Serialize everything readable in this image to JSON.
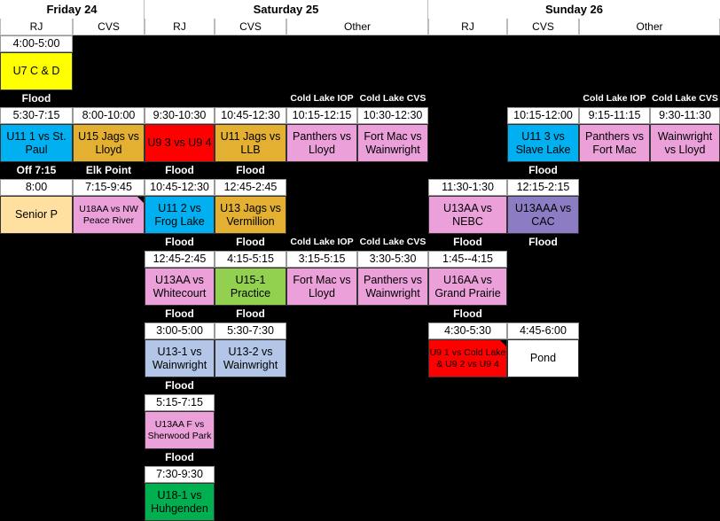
{
  "days": [
    {
      "name": "Friday 24"
    },
    {
      "name": "Saturday 25"
    },
    {
      "name": "Sunday 26"
    }
  ],
  "columns": [
    "RJ",
    "CVS",
    "RJ",
    "CVS",
    "Other",
    "RJ",
    "CVS",
    "Other"
  ],
  "cells": [
    {
      "kind": "time",
      "col": 0,
      "row": 0,
      "text": "4:00-5:00"
    },
    {
      "kind": "game",
      "col": 0,
      "row": 0,
      "text": "U7 C & D",
      "color": "#FFFF00"
    },
    {
      "kind": "label",
      "col": 0,
      "row": 1,
      "text": "Flood"
    },
    {
      "kind": "label",
      "col": 4,
      "row": 1,
      "text": "Cold Lake IOP",
      "small": true
    },
    {
      "kind": "label",
      "col": 5,
      "row": 1,
      "text": "Cold Lake CVS",
      "small": true
    },
    {
      "kind": "label",
      "col": 8,
      "row": 1,
      "text": "Cold Lake IOP",
      "small": true
    },
    {
      "kind": "label",
      "col": 9,
      "row": 1,
      "text": "Cold Lake CVS",
      "small": true
    },
    {
      "kind": "time",
      "col": 0,
      "row": 1,
      "text": "5:30-7:15"
    },
    {
      "kind": "game",
      "col": 0,
      "row": 1,
      "text": "U11 1 vs St. Paul",
      "color": "#00B0F0"
    },
    {
      "kind": "time",
      "col": 1,
      "row": 1,
      "text": "8:00-10:00"
    },
    {
      "kind": "game",
      "col": 1,
      "row": 1,
      "text": "U15 Jags vs Lloyd",
      "color": "#E3B032"
    },
    {
      "kind": "time",
      "col": 2,
      "row": 1,
      "text": "9:30-10:30"
    },
    {
      "kind": "game",
      "col": 2,
      "row": 1,
      "text": "U9 3 vs U9 4",
      "color": "#FF0000"
    },
    {
      "kind": "time",
      "col": 3,
      "row": 1,
      "text": "10:45-12:30"
    },
    {
      "kind": "game",
      "col": 3,
      "row": 1,
      "text": "U11 Jags vs LLB",
      "color": "#E3B032"
    },
    {
      "kind": "time",
      "col": 4,
      "row": 1,
      "text": "10:15-12:15"
    },
    {
      "kind": "game",
      "col": 4,
      "row": 1,
      "text": "Panthers vs Lloyd",
      "color": "#EBA0DA"
    },
    {
      "kind": "time",
      "col": 5,
      "row": 1,
      "text": "10:30-12:30"
    },
    {
      "kind": "game",
      "col": 5,
      "row": 1,
      "text": "Fort Mac vs Wainwright",
      "color": "#EBA0DA"
    },
    {
      "kind": "time",
      "col": 7,
      "row": 1,
      "text": "10:15-12:00"
    },
    {
      "kind": "game",
      "col": 7,
      "row": 1,
      "text": "U11 3 vs Slave Lake",
      "color": "#00B0F0"
    },
    {
      "kind": "time",
      "col": 8,
      "row": 1,
      "text": "9:15-11:15"
    },
    {
      "kind": "game",
      "col": 8,
      "row": 1,
      "text": "Panthers vs Fort Mac",
      "color": "#EBA0DA"
    },
    {
      "kind": "time",
      "col": 9,
      "row": 1,
      "text": "9:30-11:30"
    },
    {
      "kind": "game",
      "col": 9,
      "row": 1,
      "text": "Wainwright vs Lloyd",
      "color": "#EBA0DA"
    },
    {
      "kind": "label",
      "col": 0,
      "row": 2,
      "text": "Off 7:15"
    },
    {
      "kind": "label",
      "col": 1,
      "row": 2,
      "text": "Elk Point"
    },
    {
      "kind": "label",
      "col": 2,
      "row": 2,
      "text": "Flood"
    },
    {
      "kind": "label",
      "col": 3,
      "row": 2,
      "text": "Flood"
    },
    {
      "kind": "label",
      "col": 7,
      "row": 2,
      "text": "Flood"
    },
    {
      "kind": "time",
      "col": 0,
      "row": 2,
      "text": "8:00"
    },
    {
      "kind": "game",
      "col": 0,
      "row": 2,
      "text": "Senior P",
      "color": "#FFE0A0"
    },
    {
      "kind": "time",
      "col": 1,
      "row": 2,
      "text": "7:15-9:45"
    },
    {
      "kind": "game",
      "col": 1,
      "row": 2,
      "text": "U18AA vs NW Peace River",
      "color": "#EBA0DA",
      "small": true,
      "flag": true
    },
    {
      "kind": "time",
      "col": 2,
      "row": 2,
      "text": "10:45-12:30"
    },
    {
      "kind": "game",
      "col": 2,
      "row": 2,
      "text": "U11 2 vs Frog Lake",
      "color": "#00B0F0"
    },
    {
      "kind": "time",
      "col": 3,
      "row": 2,
      "text": "12:45-2:45"
    },
    {
      "kind": "game",
      "col": 3,
      "row": 2,
      "text": "U13 Jags vs Vermillion",
      "color": "#E3B032"
    },
    {
      "kind": "time",
      "col": 6,
      "row": 2,
      "text": "11:30-1:30"
    },
    {
      "kind": "game",
      "col": 6,
      "row": 2,
      "text": "U13AA vs NEBC",
      "color": "#EBA0DA"
    },
    {
      "kind": "time",
      "col": 7,
      "row": 2,
      "text": "12:15-2:15"
    },
    {
      "kind": "game",
      "col": 7,
      "row": 2,
      "text": "U13AAA vs CAC",
      "color": "#8C7CC4"
    },
    {
      "kind": "label",
      "col": 2,
      "row": 3,
      "text": "Flood"
    },
    {
      "kind": "label",
      "col": 3,
      "row": 3,
      "text": "Flood"
    },
    {
      "kind": "label",
      "col": 4,
      "row": 3,
      "text": "Cold Lake IOP",
      "small": true
    },
    {
      "kind": "label",
      "col": 5,
      "row": 3,
      "text": "Cold Lake CVS",
      "small": true
    },
    {
      "kind": "label",
      "col": 6,
      "row": 3,
      "text": "Flood"
    },
    {
      "kind": "label",
      "col": 7,
      "row": 3,
      "text": "Flood"
    },
    {
      "kind": "time",
      "col": 2,
      "row": 3,
      "text": "12:45-2:45"
    },
    {
      "kind": "game",
      "col": 2,
      "row": 3,
      "text": "U13AA vs Whitecourt",
      "color": "#EBA0DA"
    },
    {
      "kind": "time",
      "col": 3,
      "row": 3,
      "text": "4:15-5:15"
    },
    {
      "kind": "game",
      "col": 3,
      "row": 3,
      "text": "U15-1 Practice",
      "color": "#92D050"
    },
    {
      "kind": "time",
      "col": 4,
      "row": 3,
      "text": "3:15-5:15"
    },
    {
      "kind": "game",
      "col": 4,
      "row": 3,
      "text": "Fort Mac vs Lloyd",
      "color": "#EBA0DA"
    },
    {
      "kind": "time",
      "col": 5,
      "row": 3,
      "text": "3:30-5:30"
    },
    {
      "kind": "game",
      "col": 5,
      "row": 3,
      "text": "Panthers vs Wainwright",
      "color": "#EBA0DA"
    },
    {
      "kind": "time",
      "col": 6,
      "row": 3,
      "text": "1:45--4:15"
    },
    {
      "kind": "game",
      "col": 6,
      "row": 3,
      "text": "U16AA vs Grand Prairie",
      "color": "#EBA0DA"
    },
    {
      "kind": "label",
      "col": 2,
      "row": 4,
      "text": "Flood"
    },
    {
      "kind": "label",
      "col": 3,
      "row": 4,
      "text": "Flood"
    },
    {
      "kind": "label",
      "col": 6,
      "row": 4,
      "text": "Flood"
    },
    {
      "kind": "time",
      "col": 2,
      "row": 4,
      "text": "3:00-5:00"
    },
    {
      "kind": "game",
      "col": 2,
      "row": 4,
      "text": "U13-1 vs Wainwright",
      "color": "#B4C6E7"
    },
    {
      "kind": "time",
      "col": 3,
      "row": 4,
      "text": "5:30-7:30"
    },
    {
      "kind": "game",
      "col": 3,
      "row": 4,
      "text": "U13-2 vs Wainwright",
      "color": "#B4C6E7"
    },
    {
      "kind": "time",
      "col": 6,
      "row": 4,
      "text": "4:30-5:30"
    },
    {
      "kind": "game",
      "col": 6,
      "row": 4,
      "text": "U9 1 vs Cold Lake & U9 2 vs U9 4",
      "color": "#FF0000",
      "small": true,
      "flag": true
    },
    {
      "kind": "time",
      "col": 7,
      "row": 4,
      "text": "4:45-6:00"
    },
    {
      "kind": "game",
      "col": 7,
      "row": 4,
      "text": "Pond",
      "color": "#FFFFFF"
    },
    {
      "kind": "label",
      "col": 2,
      "row": 5,
      "text": "Flood"
    },
    {
      "kind": "time",
      "col": 2,
      "row": 5,
      "text": "5:15-7:15"
    },
    {
      "kind": "game",
      "col": 2,
      "row": 5,
      "text": "U13AA F vs Sherwood Park",
      "color": "#EBA0DA",
      "small": true
    },
    {
      "kind": "label",
      "col": 2,
      "row": 6,
      "text": "Flood"
    },
    {
      "kind": "time",
      "col": 2,
      "row": 6,
      "text": "7:30-9:30"
    },
    {
      "kind": "game",
      "col": 2,
      "row": 6,
      "text": "U18-1 vs Huhgenden",
      "color": "#00B050"
    }
  ]
}
